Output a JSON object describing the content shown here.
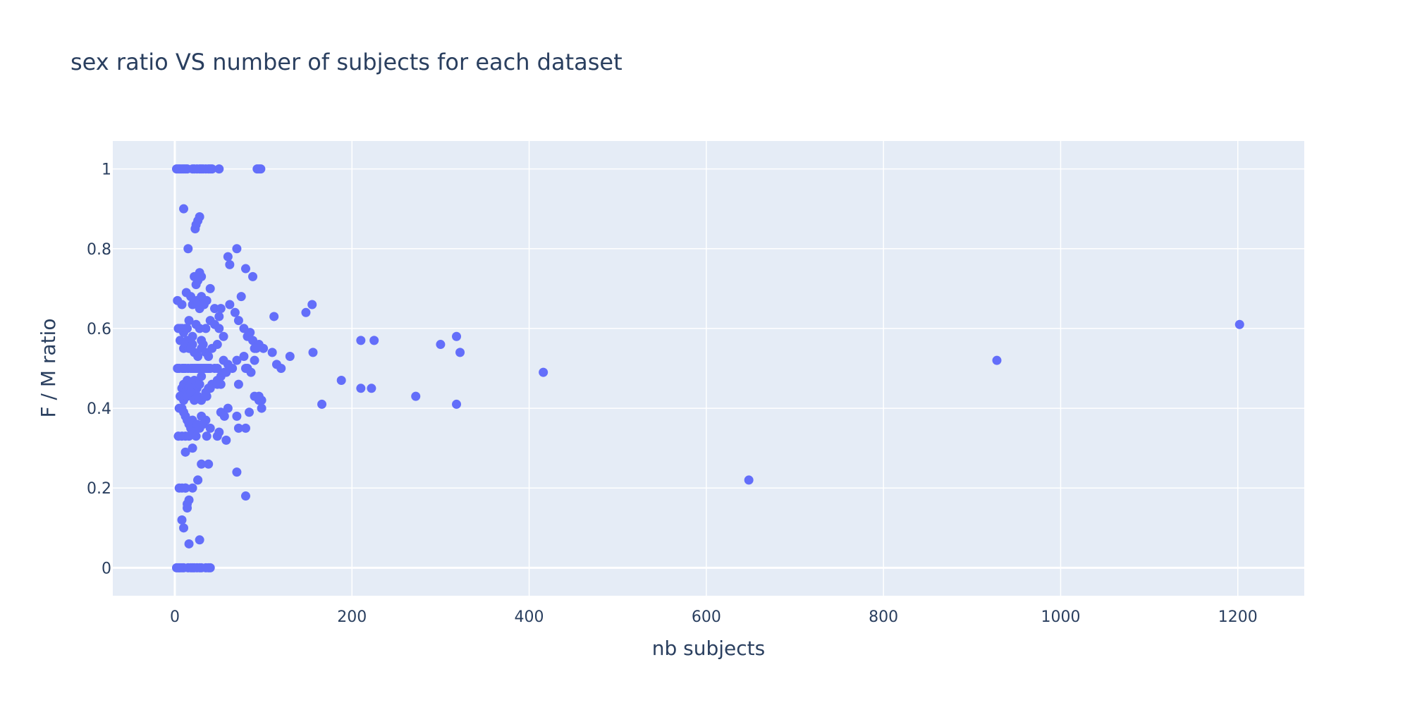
{
  "chart_data": {
    "type": "scatter",
    "title": "sex ratio VS number of subjects for each dataset",
    "xlabel": "nb subjects",
    "ylabel": "F / M ratio",
    "xlim": [
      -70,
      1275
    ],
    "ylim": [
      -0.07,
      1.07
    ],
    "xticks": [
      0,
      200,
      400,
      600,
      800,
      1000,
      1200
    ],
    "yticks": [
      0,
      0.2,
      0.4,
      0.6,
      0.8,
      1
    ],
    "grid": true,
    "colors": {
      "marker": "#636efa",
      "plot_bg": "#e5ecf6",
      "text": "#2a3f5f"
    },
    "series": [
      {
        "x": [
          2,
          4,
          6,
          8,
          10,
          12,
          14,
          20,
          22,
          25,
          28,
          30,
          32,
          35,
          38,
          40,
          42,
          50,
          93,
          95,
          97,
          2,
          4,
          6,
          8,
          10,
          15,
          18,
          20,
          22,
          25,
          28,
          30,
          35,
          40,
          10,
          23,
          24,
          26,
          28,
          15,
          22,
          30,
          28,
          24,
          26,
          3,
          8,
          13,
          18,
          20,
          25,
          28,
          30,
          33,
          36,
          40,
          45,
          50,
          4,
          6,
          8,
          10,
          12,
          14,
          16,
          20,
          24,
          28,
          30,
          35,
          40,
          45,
          50,
          55,
          6,
          10,
          12,
          14,
          16,
          18,
          20,
          22,
          26,
          30,
          32,
          35,
          38,
          42,
          48,
          3,
          5,
          8,
          10,
          12,
          15,
          18,
          20,
          22,
          24,
          26,
          28,
          30,
          32,
          34,
          36,
          38,
          40,
          45,
          48,
          8,
          10,
          12,
          14,
          16,
          18,
          20,
          22,
          25,
          28,
          30,
          35,
          38,
          42,
          48,
          5,
          8,
          10,
          12,
          14,
          16,
          18,
          20,
          25,
          30,
          35,
          4,
          8,
          12,
          16,
          20,
          24,
          28,
          32,
          36,
          40,
          6,
          10,
          14,
          18,
          22,
          26,
          30,
          36,
          40,
          48,
          52,
          56,
          12,
          20,
          26,
          30,
          38,
          5,
          8,
          12,
          16,
          20,
          26,
          16,
          28,
          38,
          14,
          10,
          14,
          12,
          8,
          60,
          70,
          80,
          88,
          62,
          75,
          52,
          62,
          68,
          72,
          78,
          82,
          85,
          88,
          90,
          95,
          100,
          110,
          115,
          120,
          130,
          55,
          60,
          65,
          70,
          78,
          82,
          86,
          90,
          92,
          95,
          98,
          52,
          56,
          60,
          70,
          72,
          80,
          84,
          90,
          95,
          98,
          48,
          50,
          58,
          70,
          80,
          52,
          58,
          72,
          80,
          148,
          155,
          112,
          156,
          210,
          225,
          318,
          300,
          322,
          188,
          210,
          222,
          272,
          166,
          318,
          416,
          928,
          1202,
          648
        ],
        "y": [
          1,
          1,
          1,
          1,
          1,
          1,
          1,
          1,
          1,
          1,
          1,
          1,
          1,
          1,
          1,
          1,
          1,
          1,
          1,
          1,
          1,
          0,
          0,
          0,
          0,
          0,
          0,
          0,
          0,
          0,
          0,
          0,
          0,
          0,
          0,
          0.9,
          0.85,
          0.86,
          0.87,
          0.88,
          0.8,
          0.73,
          0.73,
          0.74,
          0.71,
          0.72,
          0.67,
          0.66,
          0.69,
          0.68,
          0.66,
          0.67,
          0.65,
          0.68,
          0.66,
          0.67,
          0.7,
          0.65,
          0.63,
          0.6,
          0.6,
          0.6,
          0.59,
          0.6,
          0.6,
          0.62,
          0.58,
          0.61,
          0.6,
          0.57,
          0.6,
          0.62,
          0.61,
          0.6,
          0.58,
          0.57,
          0.55,
          0.56,
          0.57,
          0.55,
          0.55,
          0.56,
          0.54,
          0.53,
          0.55,
          0.56,
          0.54,
          0.53,
          0.55,
          0.56,
          0.5,
          0.5,
          0.5,
          0.5,
          0.5,
          0.5,
          0.5,
          0.5,
          0.5,
          0.5,
          0.5,
          0.5,
          0.5,
          0.5,
          0.5,
          0.5,
          0.5,
          0.5,
          0.5,
          0.5,
          0.45,
          0.46,
          0.44,
          0.47,
          0.45,
          0.46,
          0.44,
          0.47,
          0.45,
          0.46,
          0.48,
          0.44,
          0.45,
          0.46,
          0.47,
          0.4,
          0.4,
          0.39,
          0.38,
          0.37,
          0.36,
          0.35,
          0.37,
          0.36,
          0.38,
          0.37,
          0.33,
          0.33,
          0.33,
          0.33,
          0.34,
          0.33,
          0.35,
          0.36,
          0.33,
          0.35,
          0.43,
          0.42,
          0.43,
          0.44,
          0.42,
          0.43,
          0.42,
          0.43,
          0.45,
          0.46,
          0.48,
          0.49,
          0.29,
          0.3,
          0.22,
          0.26,
          0.26,
          0.2,
          0.2,
          0.2,
          0.17,
          0.2,
          0.22,
          0.06,
          0.07,
          0.0,
          0.15,
          0.1,
          0.16,
          0.2,
          0.12,
          0.78,
          0.8,
          0.75,
          0.73,
          0.76,
          0.68,
          0.65,
          0.66,
          0.64,
          0.62,
          0.6,
          0.58,
          0.59,
          0.57,
          0.55,
          0.56,
          0.55,
          0.54,
          0.51,
          0.5,
          0.53,
          0.52,
          0.51,
          0.5,
          0.52,
          0.53,
          0.5,
          0.49,
          0.52,
          0.55,
          0.43,
          0.42,
          0.39,
          0.38,
          0.4,
          0.38,
          0.35,
          0.35,
          0.39,
          0.43,
          0.42,
          0.4,
          0.33,
          0.34,
          0.32,
          0.24,
          0.18,
          0.46,
          0.49,
          0.46,
          0.5,
          0.64,
          0.66,
          0.63,
          0.54,
          0.57,
          0.57,
          0.58,
          0.56,
          0.54,
          0.47,
          0.45,
          0.45,
          0.43,
          0.41,
          0.41,
          0.49,
          0.52,
          0.61,
          0.22
        ]
      }
    ]
  }
}
